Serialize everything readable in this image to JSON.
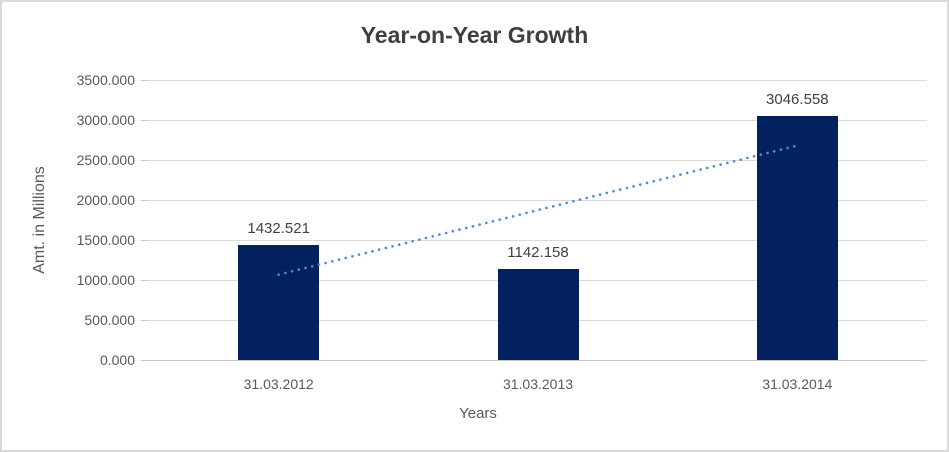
{
  "chart_data": {
    "type": "bar",
    "title": "Year-on-Year Growth",
    "xlabel": "Years",
    "ylabel": "Amt. in Millions",
    "categories": [
      "31.03.2012",
      "31.03.2013",
      "31.03.2014"
    ],
    "values": [
      1432.521,
      1142.158,
      3046.558
    ],
    "data_labels": [
      "1432.521",
      "1142.158",
      "3046.558"
    ],
    "yticks": [
      "3500.000",
      "3000.000",
      "2500.000",
      "2000.000",
      "1500.000",
      "1000.000",
      "500.000",
      "0.000"
    ],
    "ylim": [
      0,
      3500
    ],
    "ytick_step": 500,
    "grid": true,
    "legend": "none",
    "trendline": {
      "type": "linear",
      "style": "dotted"
    },
    "colors": {
      "bar": "#02215E",
      "trendline": "#4E8AD3",
      "gridline": "#DADADA",
      "axis_line": "#C9C9C9",
      "title_text": "#3F3F3F",
      "axis_text": "#595959",
      "data_label_text": "#404040",
      "border": "#D9D9D9",
      "background": "#FFFFFF"
    }
  }
}
